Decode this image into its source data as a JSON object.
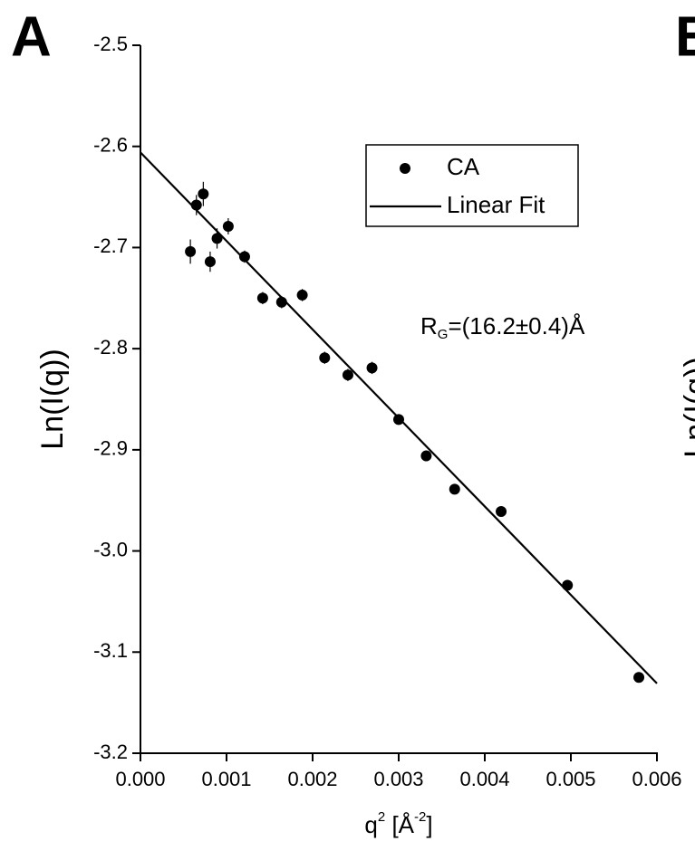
{
  "chart_data": {
    "type": "scatter",
    "panel_label": "A",
    "next_panel_label": "B",
    "next_panel_ylabel": "Ln(I(q))",
    "ylabel": "Ln(I(q))",
    "xlabel_parts": [
      "q",
      "2",
      " [Å",
      "-2",
      "]"
    ],
    "annotation_parts": [
      "R",
      "G",
      "=(16.2±0.4)Å"
    ],
    "xlim": [
      0,
      0.006
    ],
    "ylim": [
      -3.2,
      -2.5
    ],
    "xticks": [
      {
        "value": 0,
        "label": "0.000"
      },
      0.001,
      0.002,
      0.003,
      0.004,
      0.005,
      0.006
    ],
    "yticks": [
      -3.2,
      -3.1,
      {
        "value": -3,
        "label": "-3.0"
      },
      -2.9,
      -2.8,
      -2.7,
      -2.6,
      -2.5
    ],
    "series": [
      {
        "name": "CA",
        "color": "#000000",
        "type": "scatter",
        "x": [
          0.00058,
          0.00065,
          0.00073,
          0.00081,
          0.00089,
          0.00102,
          0.00121,
          0.00142,
          0.00164,
          0.00188,
          0.00214,
          0.00241,
          0.00269,
          0.003,
          0.00332,
          0.00365,
          0.00419,
          0.00496,
          0.00579
        ],
        "values": [
          -2.704,
          -2.658,
          -2.647,
          -2.714,
          -2.691,
          -2.679,
          -2.709,
          -2.75,
          -2.754,
          -2.747,
          -2.809,
          -2.826,
          -2.819,
          -2.87,
          -2.906,
          -2.939,
          -2.961,
          -3.034,
          -3.125
        ],
        "errors": [
          0.012,
          0.01,
          0.012,
          0.01,
          0.01,
          0.008,
          0.006,
          0.006,
          0.006,
          0.006,
          0.006,
          0.006,
          0.006,
          0.005,
          0.005,
          0.005,
          0.005,
          0.005,
          0.005
        ]
      },
      {
        "name": "Linear Fit",
        "color": "#000000",
        "type": "line",
        "x": [
          0,
          0.006
        ],
        "values": [
          -2.606,
          -3.131
        ]
      }
    ]
  }
}
